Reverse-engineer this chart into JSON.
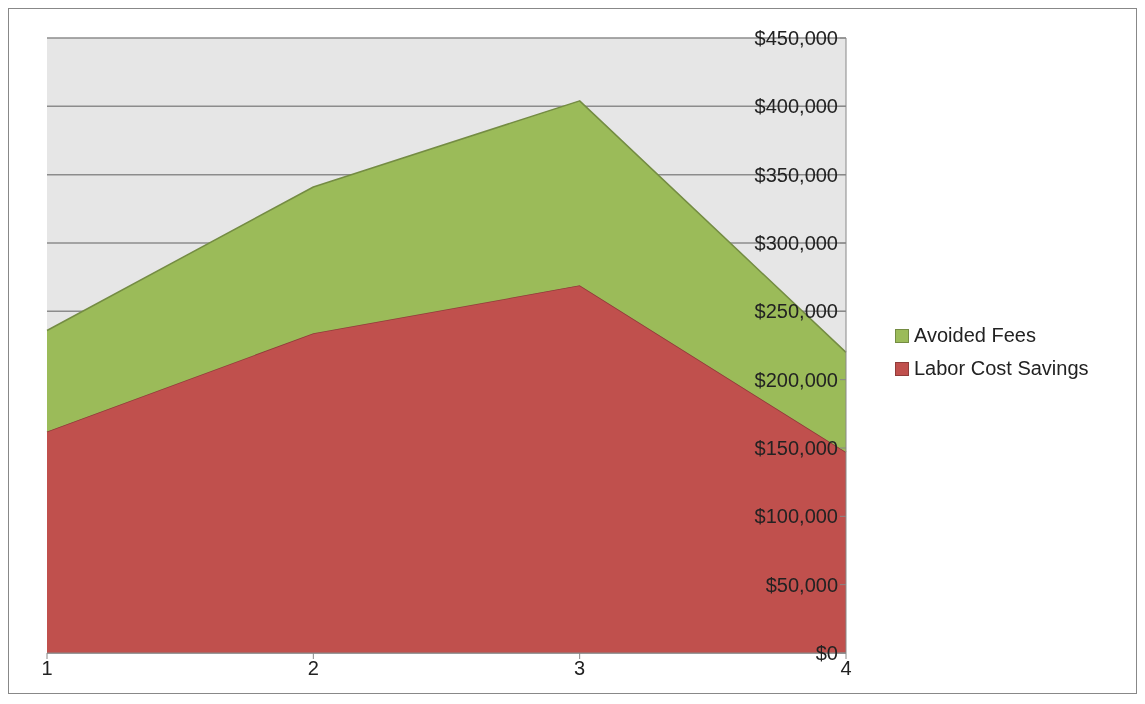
{
  "chart_data": {
    "type": "area",
    "stacked": true,
    "categories": [
      "1",
      "2",
      "3",
      "4"
    ],
    "series": [
      {
        "name": "Labor Cost Savings",
        "color": "#c0504d",
        "values": [
          162000,
          234000,
          269000,
          147000
        ]
      },
      {
        "name": "Avoided Fees",
        "color": "#9bbb59",
        "values": [
          74000,
          107000,
          135000,
          73000
        ]
      }
    ],
    "ylim": [
      0,
      450000
    ],
    "yticks": [
      {
        "value": 0,
        "label": "$0"
      },
      {
        "value": 50000,
        "label": "$50,000"
      },
      {
        "value": 100000,
        "label": "$100,000"
      },
      {
        "value": 150000,
        "label": "$150,000"
      },
      {
        "value": 200000,
        "label": "$200,000"
      },
      {
        "value": 250000,
        "label": "$250,000"
      },
      {
        "value": 300000,
        "label": "$300,000"
      },
      {
        "value": 350000,
        "label": "$350,000"
      },
      {
        "value": 400000,
        "label": "$400,000"
      },
      {
        "value": 450000,
        "label": "$450,000"
      }
    ],
    "grid": "y",
    "legend": "right"
  }
}
